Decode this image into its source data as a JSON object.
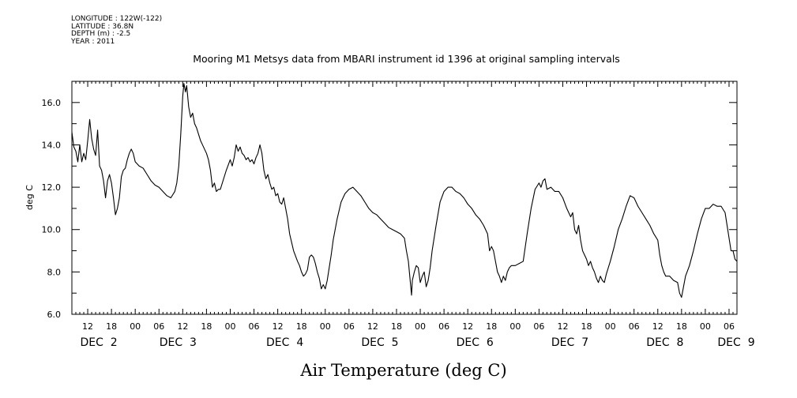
{
  "metadata": {
    "longitude": "LONGITUDE : 122W(-122)",
    "latitude": "LATITUDE : 36.8N",
    "depth": "DEPTH (m) : -2.5",
    "year": "YEAR : 2011"
  },
  "chart_data": {
    "type": "line",
    "title": "Mooring M1 Metsys data from MBARI instrument id 1396 at original sampling intervals",
    "xlabel": "Air Temperature (deg C)",
    "ylabel": "deg C",
    "ylim": [
      6.0,
      17.0
    ],
    "y_ticks": [
      "6.0",
      "8.0",
      "10.0",
      "12.0",
      "14.0",
      "16.0"
    ],
    "x_hour_labels": [
      "12",
      "18",
      "00",
      "06",
      "12",
      "18",
      "00",
      "06",
      "12",
      "18",
      "00",
      "06",
      "12",
      "18",
      "00",
      "06",
      "12",
      "18",
      "00",
      "06",
      "12",
      "18",
      "00",
      "06",
      "12",
      "18",
      "00",
      "06"
    ],
    "x_day_labels": [
      "DEC 2",
      "DEC 3",
      "DEC 4",
      "DEC 5",
      "DEC 6",
      "DEC 7",
      "DEC 8",
      "DEC 9"
    ],
    "x_unit": "hours since DEC 1 00:00",
    "xlim": [
      32,
      200
    ],
    "series": [
      {
        "values": [
          [
            32.0,
            14.6
          ],
          [
            32.5,
            13.9
          ],
          [
            33.0,
            13.7
          ],
          [
            33.5,
            13.2
          ],
          [
            34.0,
            14.0
          ],
          [
            34.5,
            13.2
          ],
          [
            35.0,
            13.6
          ],
          [
            35.5,
            13.3
          ],
          [
            36.0,
            14.2
          ],
          [
            36.5,
            15.2
          ],
          [
            37.0,
            14.3
          ],
          [
            37.5,
            13.8
          ],
          [
            38.0,
            13.5
          ],
          [
            38.5,
            14.7
          ],
          [
            39.0,
            13.0
          ],
          [
            39.5,
            12.8
          ],
          [
            40.0,
            12.3
          ],
          [
            40.5,
            11.5
          ],
          [
            41.0,
            12.3
          ],
          [
            41.5,
            12.6
          ],
          [
            42.0,
            12.2
          ],
          [
            42.5,
            11.5
          ],
          [
            43.0,
            10.7
          ],
          [
            43.5,
            11.0
          ],
          [
            44.0,
            11.5
          ],
          [
            44.5,
            12.5
          ],
          [
            45.0,
            12.8
          ],
          [
            45.5,
            12.9
          ],
          [
            46.0,
            13.3
          ],
          [
            46.5,
            13.6
          ],
          [
            47.0,
            13.8
          ],
          [
            47.5,
            13.6
          ],
          [
            48.0,
            13.2
          ],
          [
            49.0,
            13.0
          ],
          [
            50.0,
            12.9
          ],
          [
            51.0,
            12.6
          ],
          [
            52.0,
            12.3
          ],
          [
            53.0,
            12.1
          ],
          [
            54.0,
            12.0
          ],
          [
            55.0,
            11.8
          ],
          [
            56.0,
            11.6
          ],
          [
            57.0,
            11.5
          ],
          [
            58.0,
            11.8
          ],
          [
            58.5,
            12.2
          ],
          [
            59.0,
            13.0
          ],
          [
            59.5,
            14.5
          ],
          [
            60.0,
            16.3
          ],
          [
            60.3,
            16.9
          ],
          [
            60.7,
            16.5
          ],
          [
            61.0,
            16.8
          ],
          [
            61.5,
            15.8
          ],
          [
            62.0,
            15.3
          ],
          [
            62.5,
            15.5
          ],
          [
            63.0,
            15.0
          ],
          [
            63.5,
            14.8
          ],
          [
            64.0,
            14.5
          ],
          [
            64.5,
            14.2
          ],
          [
            65.0,
            14.0
          ],
          [
            65.5,
            13.8
          ],
          [
            66.0,
            13.6
          ],
          [
            66.5,
            13.3
          ],
          [
            67.0,
            12.8
          ],
          [
            67.5,
            12.0
          ],
          [
            68.0,
            12.2
          ],
          [
            68.5,
            11.8
          ],
          [
            69.0,
            11.9
          ],
          [
            69.5,
            11.9
          ],
          [
            70.0,
            12.2
          ],
          [
            71.0,
            12.8
          ],
          [
            72.0,
            13.3
          ],
          [
            72.5,
            13.0
          ],
          [
            73.0,
            13.4
          ],
          [
            73.5,
            14.0
          ],
          [
            74.0,
            13.7
          ],
          [
            74.5,
            13.9
          ],
          [
            75.0,
            13.6
          ],
          [
            75.5,
            13.5
          ],
          [
            76.0,
            13.3
          ],
          [
            76.5,
            13.4
          ],
          [
            77.0,
            13.2
          ],
          [
            77.5,
            13.3
          ],
          [
            78.0,
            13.1
          ],
          [
            78.5,
            13.4
          ],
          [
            79.0,
            13.6
          ],
          [
            79.5,
            14.0
          ],
          [
            80.0,
            13.6
          ],
          [
            80.5,
            12.8
          ],
          [
            81.0,
            12.4
          ],
          [
            81.5,
            12.6
          ],
          [
            82.0,
            12.2
          ],
          [
            82.5,
            11.9
          ],
          [
            83.0,
            12.0
          ],
          [
            83.5,
            11.6
          ],
          [
            84.0,
            11.7
          ],
          [
            84.5,
            11.3
          ],
          [
            85.0,
            11.2
          ],
          [
            85.5,
            11.5
          ],
          [
            86.0,
            11.0
          ],
          [
            86.5,
            10.5
          ],
          [
            87.0,
            9.8
          ],
          [
            88.0,
            9.0
          ],
          [
            89.0,
            8.5
          ],
          [
            89.5,
            8.3
          ],
          [
            90.0,
            8.0
          ],
          [
            90.5,
            7.8
          ],
          [
            91.0,
            7.9
          ],
          [
            91.5,
            8.1
          ],
          [
            92.0,
            8.7
          ],
          [
            92.5,
            8.8
          ],
          [
            93.0,
            8.7
          ],
          [
            93.5,
            8.4
          ],
          [
            94.0,
            8.0
          ],
          [
            94.5,
            7.7
          ],
          [
            95.0,
            7.2
          ],
          [
            95.5,
            7.4
          ],
          [
            96.0,
            7.2
          ],
          [
            96.5,
            7.6
          ],
          [
            97.0,
            8.2
          ],
          [
            97.5,
            8.8
          ],
          [
            98.0,
            9.5
          ],
          [
            99.0,
            10.5
          ],
          [
            100.0,
            11.3
          ],
          [
            101.0,
            11.7
          ],
          [
            102.0,
            11.9
          ],
          [
            103.0,
            12.0
          ],
          [
            104.0,
            11.8
          ],
          [
            105.0,
            11.6
          ],
          [
            106.0,
            11.3
          ],
          [
            107.0,
            11.0
          ],
          [
            108.0,
            10.8
          ],
          [
            109.0,
            10.7
          ],
          [
            110.0,
            10.5
          ],
          [
            111.0,
            10.3
          ],
          [
            112.0,
            10.1
          ],
          [
            113.0,
            10.0
          ],
          [
            114.0,
            9.9
          ],
          [
            115.0,
            9.8
          ],
          [
            116.0,
            9.6
          ],
          [
            116.5,
            9.0
          ],
          [
            117.0,
            8.5
          ],
          [
            117.5,
            7.5
          ],
          [
            117.8,
            6.9
          ],
          [
            118.0,
            7.6
          ],
          [
            118.5,
            8.0
          ],
          [
            119.0,
            8.3
          ],
          [
            119.5,
            8.2
          ],
          [
            120.0,
            7.5
          ],
          [
            120.5,
            7.8
          ],
          [
            121.0,
            8.0
          ],
          [
            121.5,
            7.3
          ],
          [
            122.0,
            7.6
          ],
          [
            122.5,
            8.2
          ],
          [
            123.0,
            9.0
          ],
          [
            124.0,
            10.2
          ],
          [
            125.0,
            11.3
          ],
          [
            126.0,
            11.8
          ],
          [
            127.0,
            12.0
          ],
          [
            128.0,
            12.0
          ],
          [
            129.0,
            11.8
          ],
          [
            130.0,
            11.7
          ],
          [
            131.0,
            11.5
          ],
          [
            132.0,
            11.2
          ],
          [
            133.0,
            11.0
          ],
          [
            134.0,
            10.7
          ],
          [
            135.0,
            10.5
          ],
          [
            136.0,
            10.2
          ],
          [
            137.0,
            9.8
          ],
          [
            137.5,
            9.0
          ],
          [
            138.0,
            9.2
          ],
          [
            138.5,
            9.0
          ],
          [
            139.0,
            8.5
          ],
          [
            139.5,
            8.0
          ],
          [
            140.0,
            7.8
          ],
          [
            140.5,
            7.5
          ],
          [
            141.0,
            7.8
          ],
          [
            141.5,
            7.6
          ],
          [
            142.0,
            8.0
          ],
          [
            142.5,
            8.2
          ],
          [
            143.0,
            8.3
          ],
          [
            144.0,
            8.3
          ],
          [
            145.0,
            8.4
          ],
          [
            146.0,
            8.5
          ],
          [
            147.0,
            9.8
          ],
          [
            148.0,
            11.0
          ],
          [
            149.0,
            11.9
          ],
          [
            150.0,
            12.2
          ],
          [
            150.5,
            12.0
          ],
          [
            151.0,
            12.3
          ],
          [
            151.5,
            12.4
          ],
          [
            152.0,
            11.9
          ],
          [
            153.0,
            12.0
          ],
          [
            154.0,
            11.8
          ],
          [
            155.0,
            11.8
          ],
          [
            156.0,
            11.5
          ],
          [
            157.0,
            11.0
          ],
          [
            158.0,
            10.6
          ],
          [
            158.5,
            10.8
          ],
          [
            159.0,
            10.0
          ],
          [
            159.5,
            9.8
          ],
          [
            160.0,
            10.2
          ],
          [
            160.5,
            9.5
          ],
          [
            161.0,
            9.0
          ],
          [
            161.5,
            8.8
          ],
          [
            162.0,
            8.6
          ],
          [
            162.5,
            8.3
          ],
          [
            163.0,
            8.5
          ],
          [
            163.5,
            8.2
          ],
          [
            164.0,
            8.0
          ],
          [
            164.5,
            7.7
          ],
          [
            165.0,
            7.5
          ],
          [
            165.5,
            7.8
          ],
          [
            166.0,
            7.6
          ],
          [
            166.5,
            7.5
          ],
          [
            167.0,
            7.9
          ],
          [
            167.5,
            8.2
          ],
          [
            168.0,
            8.5
          ],
          [
            169.0,
            9.2
          ],
          [
            170.0,
            10.0
          ],
          [
            171.0,
            10.5
          ],
          [
            172.0,
            11.1
          ],
          [
            173.0,
            11.6
          ],
          [
            174.0,
            11.5
          ],
          [
            175.0,
            11.1
          ],
          [
            176.0,
            10.8
          ],
          [
            177.0,
            10.5
          ],
          [
            178.0,
            10.2
          ],
          [
            179.0,
            9.8
          ],
          [
            180.0,
            9.5
          ],
          [
            180.5,
            8.8
          ],
          [
            181.0,
            8.3
          ],
          [
            181.5,
            8.0
          ],
          [
            182.0,
            7.8
          ],
          [
            183.0,
            7.8
          ],
          [
            184.0,
            7.6
          ],
          [
            185.0,
            7.5
          ],
          [
            185.5,
            7.0
          ],
          [
            186.0,
            6.8
          ],
          [
            186.5,
            7.3
          ],
          [
            187.0,
            7.8
          ],
          [
            188.0,
            8.3
          ],
          [
            189.0,
            9.0
          ],
          [
            190.0,
            9.8
          ],
          [
            191.0,
            10.5
          ],
          [
            192.0,
            11.0
          ],
          [
            193.0,
            11.0
          ],
          [
            194.0,
            11.2
          ],
          [
            195.0,
            11.1
          ],
          [
            196.0,
            11.1
          ],
          [
            197.0,
            10.8
          ],
          [
            197.5,
            10.2
          ],
          [
            198.0,
            9.6
          ],
          [
            198.5,
            9.0
          ],
          [
            199.0,
            9.0
          ],
          [
            199.5,
            8.6
          ],
          [
            200.0,
            8.5
          ]
        ]
      }
    ]
  }
}
